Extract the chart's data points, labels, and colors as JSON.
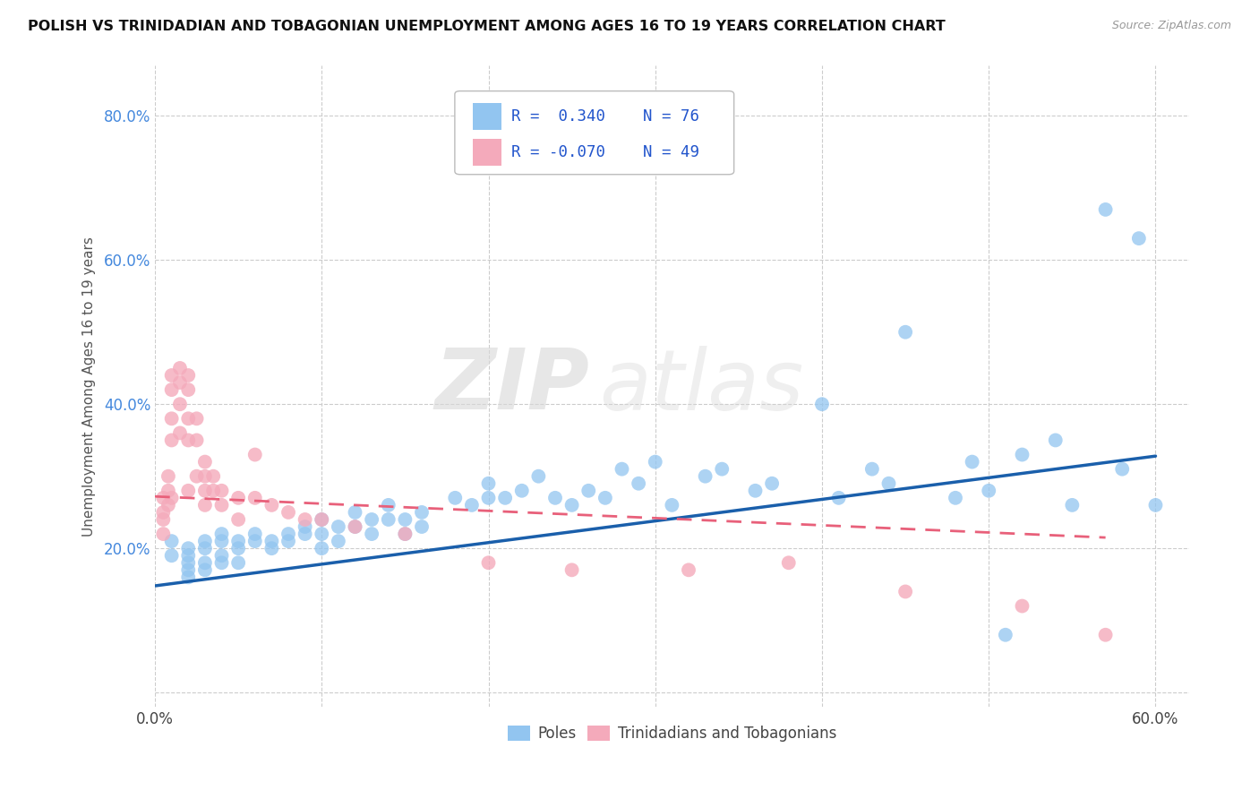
{
  "title": "POLISH VS TRINIDADIAN AND TOBAGONIAN UNEMPLOYMENT AMONG AGES 16 TO 19 YEARS CORRELATION CHART",
  "source": "Source: ZipAtlas.com",
  "ylabel": "Unemployment Among Ages 16 to 19 years",
  "xlim": [
    0.0,
    0.62
  ],
  "ylim": [
    -0.02,
    0.87
  ],
  "x_ticks": [
    0.0,
    0.1,
    0.2,
    0.3,
    0.4,
    0.5,
    0.6
  ],
  "y_ticks": [
    0.0,
    0.2,
    0.4,
    0.6,
    0.8
  ],
  "grid_color": "#cccccc",
  "background_color": "#ffffff",
  "blue_color": "#92C5F0",
  "blue_line_color": "#1A5FAB",
  "pink_color": "#F4AABB",
  "pink_line_color": "#E8607A",
  "watermark_1": "ZIP",
  "watermark_2": "atlas",
  "poles_scatter_x": [
    0.01,
    0.01,
    0.02,
    0.02,
    0.02,
    0.02,
    0.02,
    0.03,
    0.03,
    0.03,
    0.03,
    0.04,
    0.04,
    0.04,
    0.04,
    0.05,
    0.05,
    0.05,
    0.06,
    0.06,
    0.07,
    0.07,
    0.08,
    0.08,
    0.09,
    0.09,
    0.1,
    0.1,
    0.1,
    0.11,
    0.11,
    0.12,
    0.12,
    0.13,
    0.13,
    0.14,
    0.14,
    0.15,
    0.15,
    0.16,
    0.16,
    0.18,
    0.19,
    0.2,
    0.2,
    0.21,
    0.22,
    0.23,
    0.24,
    0.25,
    0.26,
    0.27,
    0.28,
    0.29,
    0.3,
    0.31,
    0.33,
    0.34,
    0.36,
    0.37,
    0.4,
    0.41,
    0.43,
    0.44,
    0.45,
    0.48,
    0.49,
    0.5,
    0.51,
    0.52,
    0.54,
    0.55,
    0.57,
    0.58,
    0.59,
    0.6
  ],
  "poles_scatter_y": [
    0.19,
    0.21,
    0.2,
    0.19,
    0.18,
    0.17,
    0.16,
    0.21,
    0.2,
    0.18,
    0.17,
    0.22,
    0.21,
    0.19,
    0.18,
    0.21,
    0.2,
    0.18,
    0.22,
    0.21,
    0.21,
    0.2,
    0.22,
    0.21,
    0.23,
    0.22,
    0.24,
    0.22,
    0.2,
    0.23,
    0.21,
    0.25,
    0.23,
    0.24,
    0.22,
    0.26,
    0.24,
    0.24,
    0.22,
    0.25,
    0.23,
    0.27,
    0.26,
    0.29,
    0.27,
    0.27,
    0.28,
    0.3,
    0.27,
    0.26,
    0.28,
    0.27,
    0.31,
    0.29,
    0.32,
    0.26,
    0.3,
    0.31,
    0.28,
    0.29,
    0.4,
    0.27,
    0.31,
    0.29,
    0.5,
    0.27,
    0.32,
    0.28,
    0.08,
    0.33,
    0.35,
    0.26,
    0.67,
    0.31,
    0.63,
    0.26
  ],
  "tnt_scatter_x": [
    0.005,
    0.005,
    0.005,
    0.005,
    0.008,
    0.008,
    0.008,
    0.01,
    0.01,
    0.01,
    0.01,
    0.01,
    0.015,
    0.015,
    0.015,
    0.015,
    0.02,
    0.02,
    0.02,
    0.02,
    0.02,
    0.025,
    0.025,
    0.025,
    0.03,
    0.03,
    0.03,
    0.03,
    0.035,
    0.035,
    0.04,
    0.04,
    0.05,
    0.05,
    0.06,
    0.06,
    0.07,
    0.08,
    0.09,
    0.1,
    0.12,
    0.15,
    0.2,
    0.25,
    0.32,
    0.38,
    0.45,
    0.52,
    0.57
  ],
  "tnt_scatter_y": [
    0.27,
    0.25,
    0.24,
    0.22,
    0.3,
    0.28,
    0.26,
    0.44,
    0.42,
    0.38,
    0.35,
    0.27,
    0.45,
    0.43,
    0.4,
    0.36,
    0.44,
    0.42,
    0.38,
    0.35,
    0.28,
    0.38,
    0.35,
    0.3,
    0.32,
    0.3,
    0.28,
    0.26,
    0.3,
    0.28,
    0.28,
    0.26,
    0.27,
    0.24,
    0.33,
    0.27,
    0.26,
    0.25,
    0.24,
    0.24,
    0.23,
    0.22,
    0.18,
    0.17,
    0.17,
    0.18,
    0.14,
    0.12,
    0.08
  ],
  "blue_trend_x": [
    0.0,
    0.6
  ],
  "blue_trend_y": [
    0.148,
    0.328
  ],
  "pink_trend_x": [
    0.0,
    0.57
  ],
  "pink_trend_y": [
    0.272,
    0.215
  ]
}
